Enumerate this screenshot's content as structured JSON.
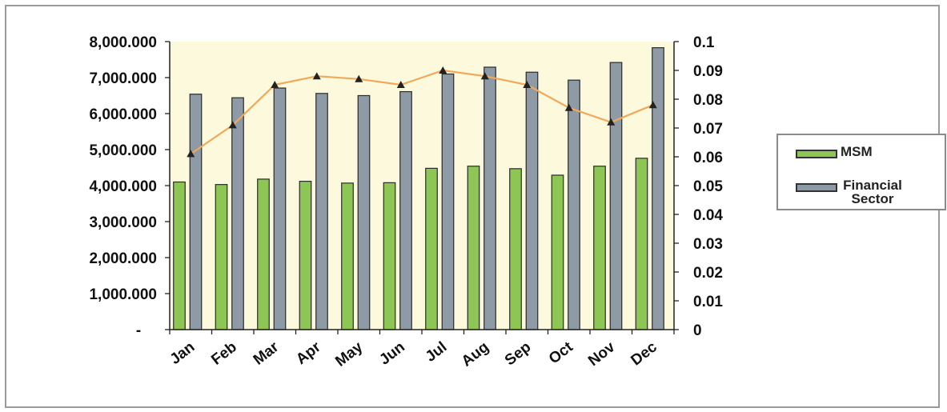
{
  "chart_data": {
    "type": "bar",
    "categories": [
      "Jan",
      "Feb",
      "Mar",
      "Apr",
      "May",
      "Jun",
      "Jul",
      "Aug",
      "Sep",
      "Oct",
      "Nov",
      "Dec"
    ],
    "series": [
      {
        "name": "MSM",
        "type": "bar",
        "axis": "left",
        "color": "#8dc655",
        "values": [
          4100000,
          4030000,
          4180000,
          4120000,
          4070000,
          4080000,
          4480000,
          4540000,
          4470000,
          4290000,
          4540000,
          4760000
        ]
      },
      {
        "name": "Financial Sector",
        "type": "bar",
        "axis": "left",
        "color": "#8e9ba7",
        "values": [
          6540000,
          6440000,
          6710000,
          6560000,
          6500000,
          6610000,
          7100000,
          7290000,
          7150000,
          6930000,
          7420000,
          7830000
        ]
      },
      {
        "type": "line",
        "axis": "right",
        "color": "#f0a95a",
        "marker_color": "#222222",
        "values": [
          0.061,
          0.071,
          0.085,
          0.088,
          0.087,
          0.085,
          0.09,
          0.088,
          0.085,
          0.077,
          0.072,
          0.078
        ]
      }
    ],
    "left_axis": {
      "ylim": [
        0,
        8000000
      ],
      "tick_labels": [
        "-",
        "1,000.000",
        "2,000.000",
        "3,000.000",
        "4,000.000",
        "5,000.000",
        "6,000.000",
        "7,000.000",
        "8,000.000"
      ]
    },
    "right_axis": {
      "ylim": [
        0,
        0.1
      ],
      "tick_labels": [
        "0",
        "0.01",
        "0.02",
        "0.03",
        "0.04",
        "0.05",
        "0.06",
        "0.07",
        "0.08",
        "0.09",
        "0.1"
      ]
    },
    "plot_background": "#fcf9dc",
    "legend_position": "right",
    "grid": false
  },
  "legend": {
    "items": [
      {
        "label": "MSM",
        "color": "#8dc655"
      },
      {
        "label": "Financial Sector",
        "line1": "Financial",
        "line2": "Sector",
        "color": "#8e9ba7"
      }
    ]
  }
}
